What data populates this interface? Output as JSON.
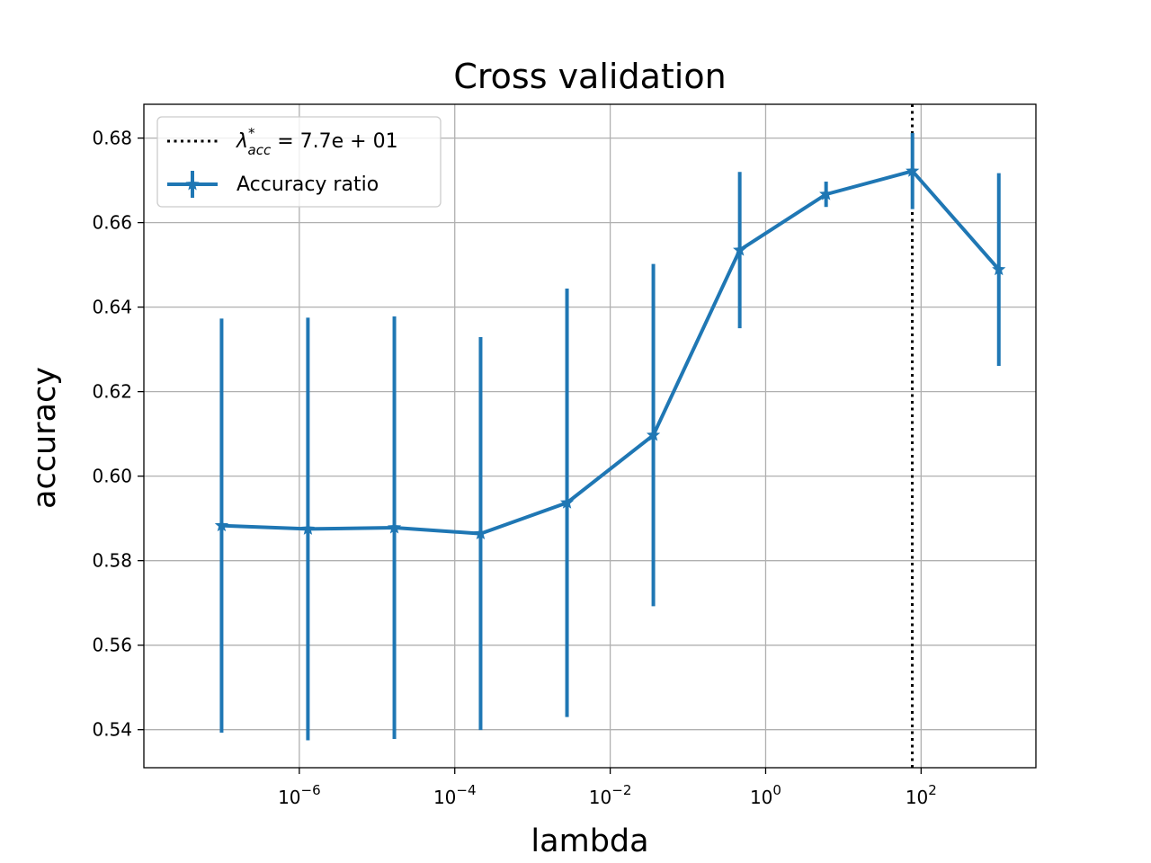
{
  "chart_data": {
    "type": "line",
    "title": "Cross validation",
    "xlabel": "lambda",
    "ylabel": "accuracy",
    "x_scale": "log",
    "x_tick_exponents": [
      -6,
      -4,
      -2,
      0,
      2
    ],
    "x_tick_base": "10",
    "y_ticks": [
      "0.54",
      "0.56",
      "0.58",
      "0.60",
      "0.62",
      "0.64",
      "0.66",
      "0.68"
    ],
    "xlim": [
      1e-08,
      3000.0
    ],
    "ylim": [
      0.531,
      0.688
    ],
    "grid": true,
    "legend_position": "top-left",
    "colors": {
      "series": "#1f77b4",
      "vline": "#000000",
      "grid": "#b0b0b0"
    },
    "vline": {
      "x": 77,
      "label_symbol": "λ",
      "label_superscript": "*",
      "label_subscript": "acc",
      "label_value": " = 7.7e + 01"
    },
    "series": [
      {
        "name": "Accuracy ratio",
        "marker": "star",
        "x": [
          1e-07,
          1.29e-06,
          1.67e-05,
          0.000215,
          0.00278,
          0.0359,
          0.464,
          5.99,
          77.4,
          1000
        ],
        "y": [
          0.5883,
          0.5875,
          0.5878,
          0.5864,
          0.5937,
          0.6097,
          0.6535,
          0.6667,
          0.6722,
          0.6489
        ],
        "err": [
          0.049,
          0.05,
          0.05,
          0.0465,
          0.0507,
          0.0405,
          0.0185,
          0.003,
          0.009,
          0.0228
        ]
      }
    ]
  }
}
